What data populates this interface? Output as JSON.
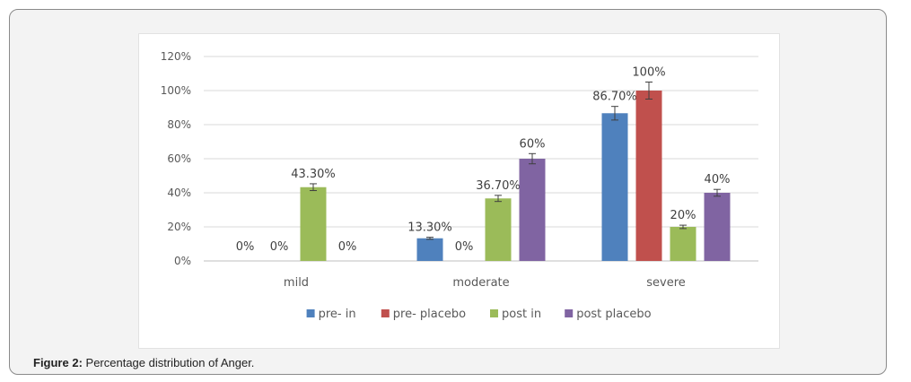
{
  "caption": {
    "prefix": "Figure 2:",
    "text": " Percentage distribution of Anger."
  },
  "chart_data": {
    "type": "bar",
    "categories": [
      "mild",
      "moderate",
      "severe"
    ],
    "ylim": [
      0,
      120
    ],
    "yticks": [
      0,
      20,
      40,
      60,
      80,
      100,
      120
    ],
    "ytick_format": "{v}%",
    "grid": true,
    "legend_position": "bottom",
    "series": [
      {
        "name": "pre- in",
        "color": "#4f81bd",
        "values": [
          0,
          13.3,
          86.7
        ],
        "labels": [
          "0%",
          "13.30%",
          "86.70%"
        ],
        "errors": [
          0,
          0.6,
          4.0
        ]
      },
      {
        "name": "pre- placebo",
        "color": "#c0504d",
        "values": [
          0,
          0,
          100
        ],
        "labels": [
          "0%",
          "0%",
          "100%"
        ],
        "errors": [
          0,
          0,
          5.0
        ]
      },
      {
        "name": "post in",
        "color": "#9bbb59",
        "values": [
          43.3,
          36.7,
          20
        ],
        "labels": [
          "43.30%",
          "36.70%",
          "20%"
        ],
        "errors": [
          2.0,
          1.8,
          1.0
        ]
      },
      {
        "name": "post placebo",
        "color": "#8064a2",
        "values": [
          0,
          60,
          40
        ],
        "labels": [
          "0%",
          "60%",
          "40%"
        ],
        "errors": [
          0,
          3.0,
          2.0
        ]
      }
    ]
  }
}
